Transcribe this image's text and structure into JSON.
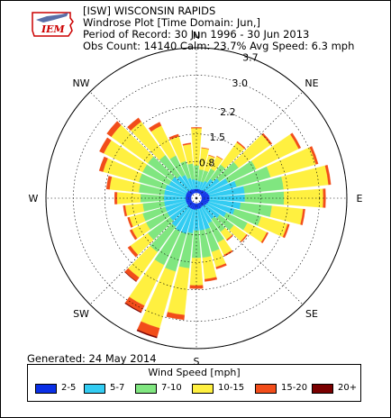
{
  "header": {
    "line1": "[ISW] WISCONSIN RAPIDS",
    "line2": "Windrose Plot [Time Domain: Jun,]",
    "line3": "Period of Record: 30 Jun 1996 - 30 Jun 2013",
    "line4": "Obs Count: 14140 Calm: 23.7% Avg Speed: 6.3 mph"
  },
  "logo": {
    "text": "IEM",
    "color": "#cc0000"
  },
  "generated": "Generated: 24 May 2014",
  "legend": {
    "title": "Wind Speed [mph]"
  },
  "chart_data": {
    "type": "windrose",
    "radial_unit": "percent",
    "radial_ticks": [
      "0.8",
      "1.5",
      "2.2",
      "3.0",
      "3.7"
    ],
    "radial_max": 3.7,
    "compass_labels": [
      "N",
      "NE",
      "E",
      "SE",
      "S",
      "SW",
      "W",
      "NW"
    ],
    "speed_bins": [
      {
        "label": "2-5",
        "color": "#0a2fe6"
      },
      {
        "label": "5-7",
        "color": "#33ccf2"
      },
      {
        "label": "7-10",
        "color": "#80e680"
      },
      {
        "label": "10-15",
        "color": "#fff040"
      },
      {
        "label": "15-20",
        "color": "#f24d1a"
      },
      {
        "label": "20+",
        "color": "#7a0000"
      }
    ],
    "directions_deg": [
      0,
      10,
      20,
      30,
      40,
      50,
      60,
      70,
      80,
      90,
      100,
      110,
      120,
      130,
      140,
      150,
      160,
      170,
      180,
      190,
      200,
      210,
      220,
      230,
      240,
      250,
      260,
      270,
      280,
      290,
      300,
      310,
      320,
      330,
      340,
      350
    ],
    "values": [
      [
        0.1,
        0.22,
        0.38,
        0.95,
        0.02,
        0.0
      ],
      [
        0.1,
        0.2,
        0.3,
        0.55,
        0.01,
        0.0
      ],
      [
        0.1,
        0.2,
        0.3,
        0.4,
        0.01,
        0.0
      ],
      [
        0.1,
        0.25,
        0.35,
        0.35,
        0.01,
        0.0
      ],
      [
        0.12,
        0.35,
        0.45,
        0.7,
        0.03,
        0.0
      ],
      [
        0.14,
        0.45,
        0.6,
        1.0,
        0.05,
        0.0
      ],
      [
        0.16,
        0.6,
        0.8,
        1.2,
        0.06,
        0.0
      ],
      [
        0.18,
        0.75,
        0.9,
        1.2,
        0.06,
        0.0
      ],
      [
        0.2,
        0.9,
        1.0,
        1.15,
        0.06,
        0.0
      ],
      [
        0.2,
        0.9,
        1.0,
        1.0,
        0.06,
        0.0
      ],
      [
        0.2,
        0.8,
        0.8,
        0.8,
        0.05,
        0.0
      ],
      [
        0.18,
        0.7,
        0.7,
        0.7,
        0.05,
        0.0
      ],
      [
        0.16,
        0.55,
        0.6,
        0.55,
        0.04,
        0.0
      ],
      [
        0.14,
        0.45,
        0.45,
        0.4,
        0.03,
        0.0
      ],
      [
        0.12,
        0.4,
        0.4,
        0.25,
        0.03,
        0.0
      ],
      [
        0.12,
        0.45,
        0.55,
        0.35,
        0.04,
        0.0
      ],
      [
        0.14,
        0.55,
        0.6,
        0.4,
        0.05,
        0.0
      ],
      [
        0.14,
        0.55,
        0.7,
        0.55,
        0.06,
        0.0
      ],
      [
        0.14,
        0.55,
        0.7,
        0.7,
        0.08,
        0.0
      ],
      [
        0.16,
        0.6,
        0.9,
        1.2,
        0.12,
        0.0
      ],
      [
        0.16,
        0.65,
        1.0,
        1.5,
        0.23,
        0.03
      ],
      [
        0.16,
        0.65,
        0.95,
        1.15,
        0.18,
        0.02
      ],
      [
        0.16,
        0.6,
        0.8,
        0.8,
        0.12,
        0.01
      ],
      [
        0.14,
        0.55,
        0.7,
        0.55,
        0.08,
        0.0
      ],
      [
        0.14,
        0.55,
        0.6,
        0.4,
        0.06,
        0.0
      ],
      [
        0.14,
        0.55,
        0.6,
        0.35,
        0.05,
        0.0
      ],
      [
        0.14,
        0.55,
        0.55,
        0.45,
        0.05,
        0.0
      ],
      [
        0.14,
        0.55,
        0.6,
        0.6,
        0.06,
        0.0
      ],
      [
        0.14,
        0.55,
        0.65,
        0.75,
        0.08,
        0.0
      ],
      [
        0.14,
        0.55,
        0.7,
        0.95,
        0.1,
        0.0
      ],
      [
        0.14,
        0.5,
        0.75,
        1.1,
        0.12,
        0.0
      ],
      [
        0.14,
        0.5,
        0.75,
        1.15,
        0.14,
        0.0
      ],
      [
        0.12,
        0.45,
        0.65,
        1.05,
        0.12,
        0.0
      ],
      [
        0.12,
        0.4,
        0.55,
        0.85,
        0.1,
        0.0
      ],
      [
        0.1,
        0.3,
        0.45,
        0.65,
        0.06,
        0.0
      ],
      [
        0.1,
        0.25,
        0.4,
        0.5,
        0.03,
        0.0
      ]
    ],
    "grid": true
  }
}
